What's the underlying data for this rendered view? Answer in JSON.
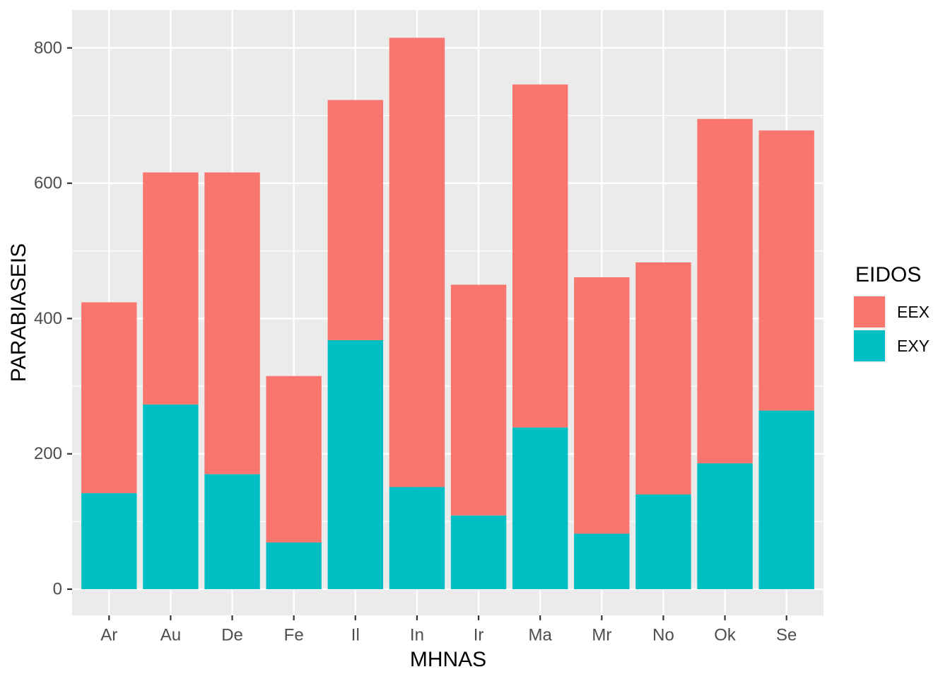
{
  "chart_data": {
    "type": "bar",
    "stacked": true,
    "title": "",
    "xlabel": "MHNAS",
    "ylabel": "PARABIASEIS",
    "legend_title": "EIDOS",
    "legend_position": "right",
    "categories": [
      "Ar",
      "Au",
      "De",
      "Fe",
      "Il",
      "In",
      "Ir",
      "Ma",
      "Mr",
      "No",
      "Ok",
      "Se"
    ],
    "series": [
      {
        "name": "EEX",
        "color": "#F8766D",
        "values": [
          282,
          343,
          446,
          246,
          355,
          664,
          341,
          507,
          379,
          343,
          509,
          414
        ]
      },
      {
        "name": "EXY",
        "color": "#00BFC4",
        "values": [
          142,
          273,
          170,
          69,
          368,
          151,
          109,
          239,
          82,
          140,
          186,
          264
        ]
      }
    ],
    "stack_totals": [
      424,
      616,
      616,
      315,
      723,
      815,
      450,
      746,
      461,
      483,
      695,
      678
    ],
    "stack_order_note": "EXY segment at bottom, EEX segment on top",
    "y_ticks": [
      0,
      200,
      400,
      600,
      800
    ],
    "y_minor_gridlines": [
      100,
      300,
      500,
      700
    ],
    "ylim": [
      -38.7,
      856.2
    ],
    "grid": true
  },
  "style": {
    "panel_bg": "#EBEBEB",
    "grid_color": "#FFFFFF",
    "tick_color": "#333333",
    "axis_text_color": "#4D4D4D",
    "title_color": "#000000",
    "page_bg": "#FFFFFF"
  }
}
